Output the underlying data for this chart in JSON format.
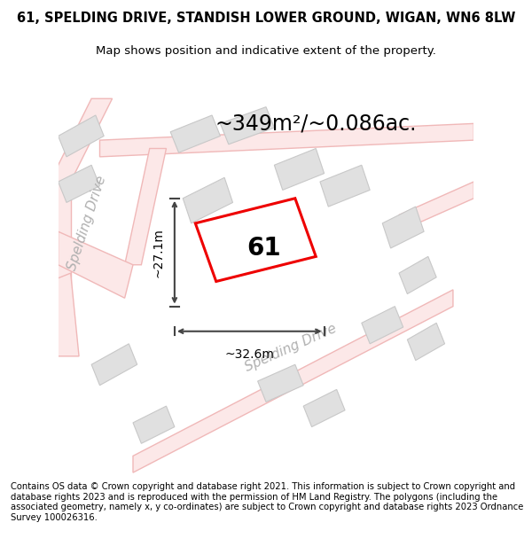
{
  "title_line1": "61, SPELDING DRIVE, STANDISH LOWER GROUND, WIGAN, WN6 8LW",
  "title_line2": "Map shows position and indicative extent of the property.",
  "area_label": "~349m²/~0.086ac.",
  "number_label": "61",
  "dim_vertical": "~27.1m",
  "dim_horizontal": "~32.6m",
  "road_label_upper": "Spelding Drive",
  "road_label_lower": "Spelding Drive",
  "footer": "Contains OS data © Crown copyright and database right 2021. This information is subject to Crown copyright and database rights 2023 and is reproduced with the permission of HM Land Registry. The polygons (including the associated geometry, namely x, y co-ordinates) are subject to Crown copyright and database rights 2023 Ordnance Survey 100026316.",
  "bg_color": "#ffffff",
  "map_bg": "#ffffff",
  "road_fill_color": "#fce8e8",
  "road_edge_color": "#f0b8b8",
  "building_color": "#e0e0e0",
  "building_edge": "#c8c8c8",
  "plot_color": "#ee0000",
  "dim_color": "#444444",
  "title_fontsize": 10.5,
  "subtitle_fontsize": 9.5,
  "area_fontsize": 17,
  "number_fontsize": 20,
  "dim_fontsize": 10,
  "road_fontsize": 11,
  "footer_fontsize": 7.2,
  "road_linewidth": 1.0,
  "plot_linewidth": 2.2
}
